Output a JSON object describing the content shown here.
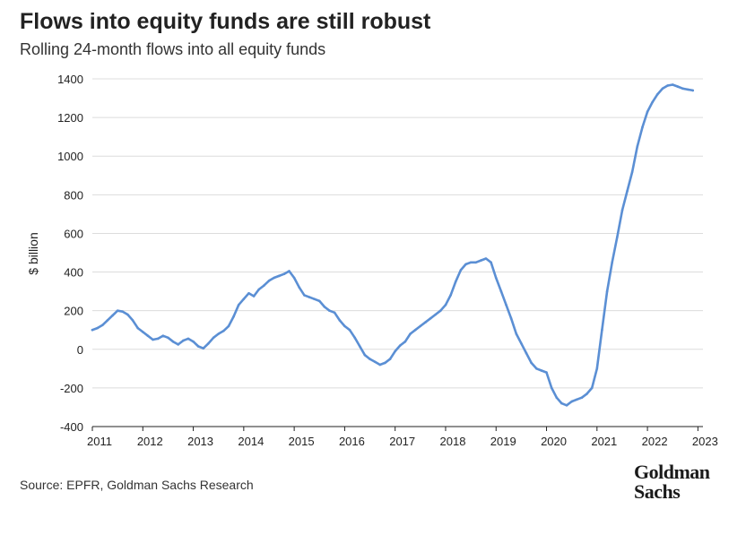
{
  "header": {
    "title": "Flows into equity funds are still robust",
    "subtitle": "Rolling 24-month flows into all equity funds"
  },
  "footer": {
    "source": "Source: EPFR, Goldman Sachs Research",
    "logo_line1": "Goldman",
    "logo_line2": "Sachs"
  },
  "colors": {
    "line": "#5b8fd4",
    "grid": "#dcdcdc",
    "axis": "#222222"
  },
  "chart_data": {
    "type": "line",
    "title": "Flows into equity funds are still robust",
    "subtitle": "Rolling 24-month flows into all equity funds",
    "xlabel": "",
    "ylabel": "$ billion",
    "ylim": [
      -400,
      1400
    ],
    "yticks": [
      -400,
      -200,
      0,
      200,
      400,
      600,
      800,
      1000,
      1200,
      1400
    ],
    "xlim": [
      2011,
      2023.1
    ],
    "xticks": [
      2011,
      2012,
      2013,
      2014,
      2015,
      2016,
      2017,
      2018,
      2019,
      2020,
      2021,
      2022,
      2023
    ],
    "grid": true,
    "legend": "none",
    "series": [
      {
        "name": "Rolling 24-month flows",
        "x": [
          2011.0,
          2011.1,
          2011.2,
          2011.3,
          2011.4,
          2011.5,
          2011.6,
          2011.7,
          2011.8,
          2011.9,
          2012.0,
          2012.1,
          2012.2,
          2012.3,
          2012.4,
          2012.5,
          2012.6,
          2012.7,
          2012.8,
          2012.9,
          2013.0,
          2013.1,
          2013.2,
          2013.3,
          2013.4,
          2013.5,
          2013.6,
          2013.7,
          2013.8,
          2013.9,
          2014.0,
          2014.1,
          2014.2,
          2014.3,
          2014.4,
          2014.5,
          2014.6,
          2014.7,
          2014.8,
          2014.9,
          2015.0,
          2015.1,
          2015.2,
          2015.3,
          2015.4,
          2015.5,
          2015.6,
          2015.7,
          2015.8,
          2015.9,
          2016.0,
          2016.1,
          2016.2,
          2016.3,
          2016.4,
          2016.5,
          2016.6,
          2016.7,
          2016.8,
          2016.9,
          2017.0,
          2017.1,
          2017.2,
          2017.3,
          2017.4,
          2017.5,
          2017.6,
          2017.7,
          2017.8,
          2017.9,
          2018.0,
          2018.1,
          2018.2,
          2018.3,
          2018.4,
          2018.5,
          2018.6,
          2018.7,
          2018.8,
          2018.9,
          2019.0,
          2019.1,
          2019.2,
          2019.3,
          2019.4,
          2019.5,
          2019.6,
          2019.7,
          2019.8,
          2019.9,
          2020.0,
          2020.1,
          2020.2,
          2020.3,
          2020.4,
          2020.5,
          2020.6,
          2020.7,
          2020.8,
          2020.9,
          2021.0,
          2021.1,
          2021.2,
          2021.3,
          2021.4,
          2021.5,
          2021.6,
          2021.7,
          2021.8,
          2021.9,
          2022.0,
          2022.1,
          2022.2,
          2022.3,
          2022.4,
          2022.5,
          2022.6,
          2022.7,
          2022.8,
          2022.9
        ],
        "values": [
          100,
          110,
          125,
          150,
          175,
          200,
          195,
          180,
          150,
          110,
          90,
          70,
          50,
          55,
          70,
          60,
          40,
          25,
          45,
          55,
          40,
          15,
          5,
          30,
          60,
          80,
          95,
          120,
          170,
          230,
          260,
          290,
          275,
          310,
          330,
          355,
          370,
          380,
          390,
          405,
          370,
          320,
          280,
          270,
          260,
          250,
          220,
          200,
          190,
          150,
          120,
          100,
          60,
          15,
          -30,
          -50,
          -65,
          -80,
          -70,
          -50,
          -10,
          20,
          40,
          80,
          100,
          120,
          140,
          160,
          180,
          200,
          230,
          280,
          350,
          410,
          440,
          450,
          450,
          460,
          470,
          450,
          370,
          300,
          230,
          160,
          80,
          30,
          -20,
          -70,
          -100,
          -110,
          -120,
          -200,
          -250,
          -280,
          -290,
          -270,
          -260,
          -250,
          -230,
          -200,
          -100,
          100,
          300,
          450,
          580,
          720,
          820,
          920,
          1050,
          1150,
          1230,
          1280,
          1320,
          1350,
          1365,
          1370,
          1360,
          1350,
          1345,
          1340
        ]
      }
    ]
  }
}
